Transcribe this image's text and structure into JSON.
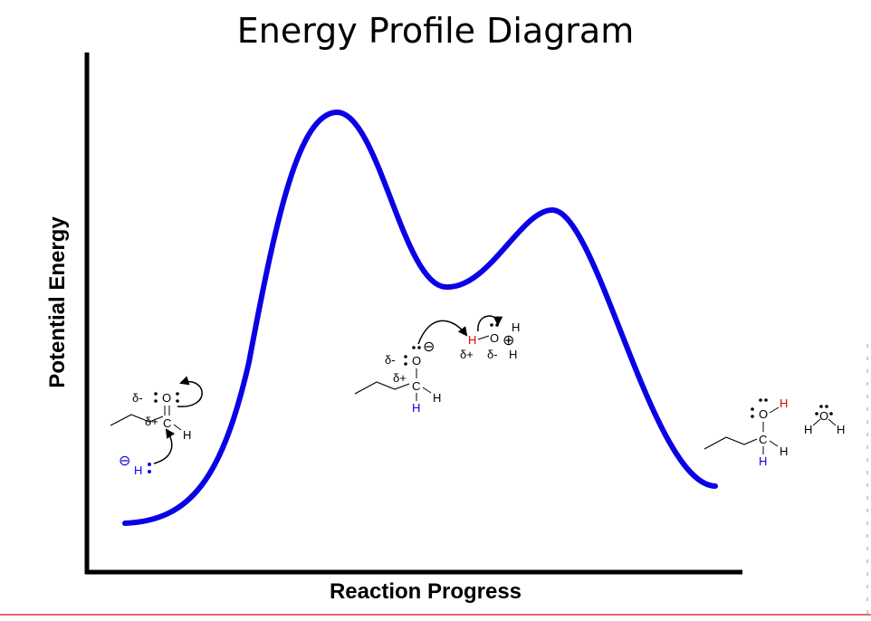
{
  "title": "Energy Profile Diagram",
  "x_axis_label": "Reaction Progress",
  "y_axis_label": "Potential Energy",
  "curve_color": "#0a00e6",
  "accent_red": "#e00000",
  "reactant": {
    "delta_minus": "δ-",
    "oxygen": "O",
    "delta_plus": "δ+",
    "carbon": "C",
    "hydrogen": "H",
    "hydride_charge": "⊖",
    "hydride": "H"
  },
  "intermediate": {
    "delta_minus": "δ-",
    "oxygen": "O",
    "charge": "⊖",
    "delta_plus": "δ+",
    "carbon": "C",
    "hydrogen_right": "H",
    "hydrogen_added": "H"
  },
  "hydronium": {
    "hydrogen_red": "H",
    "oxygen": "O",
    "charge": "⊕",
    "hydrogen_top": "H",
    "hydrogen_bottom": "H",
    "delta_plus": "δ+",
    "delta_minus": "δ-"
  },
  "product": {
    "oxygen": "O",
    "hydrogen_red": "H",
    "carbon": "C",
    "hydrogen_right": "H",
    "hydrogen_added": "H"
  },
  "water": {
    "hydrogen_left": "H",
    "oxygen": "O",
    "hydrogen_right": "H"
  }
}
